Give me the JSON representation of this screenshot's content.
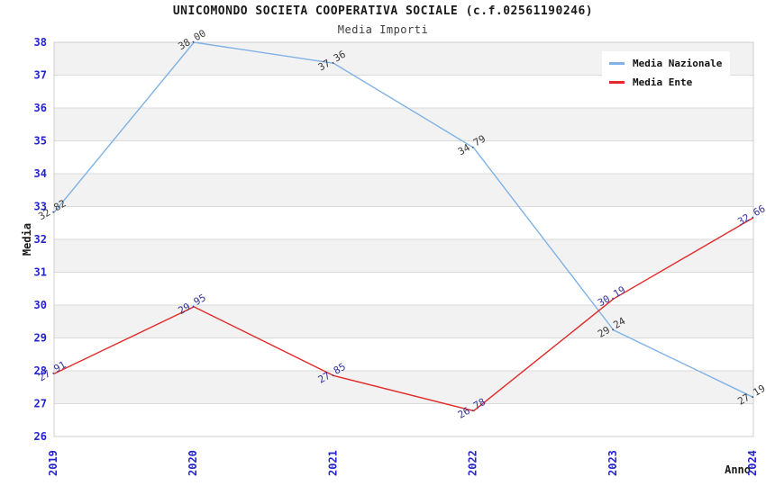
{
  "chart_data": {
    "type": "line",
    "title": "UNICOMONDO SOCIETA COOPERATIVA SOCIALE (c.f.02561190246)",
    "subtitle": "Media Importi",
    "xlabel": "Anno",
    "ylabel": "Media",
    "categories": [
      "2019",
      "2020",
      "2021",
      "2022",
      "2023",
      "2024"
    ],
    "series": [
      {
        "name": "Media Nazionale",
        "color": "#7fb2e5",
        "label_color": "#3b3b3b",
        "values": [
          32.82,
          38.0,
          37.36,
          34.79,
          29.24,
          27.19
        ]
      },
      {
        "name": "Media Ente",
        "color": "#e32929",
        "label_color": "#333399",
        "values": [
          27.91,
          29.95,
          27.85,
          26.78,
          30.19,
          32.66
        ]
      }
    ],
    "ylim": [
      26,
      38
    ],
    "yticks": [
      26,
      27,
      28,
      29,
      30,
      31,
      32,
      33,
      34,
      35,
      36,
      37,
      38
    ],
    "legend_position": "top-right",
    "grid": "alternating-horizontal-bands",
    "styles": {
      "tick_label_color": "#2424cc",
      "band_color": "#f2f2f2",
      "gridline_color": "#dadada",
      "border_color": "#cccccc",
      "background_color": "#ffffff"
    }
  }
}
